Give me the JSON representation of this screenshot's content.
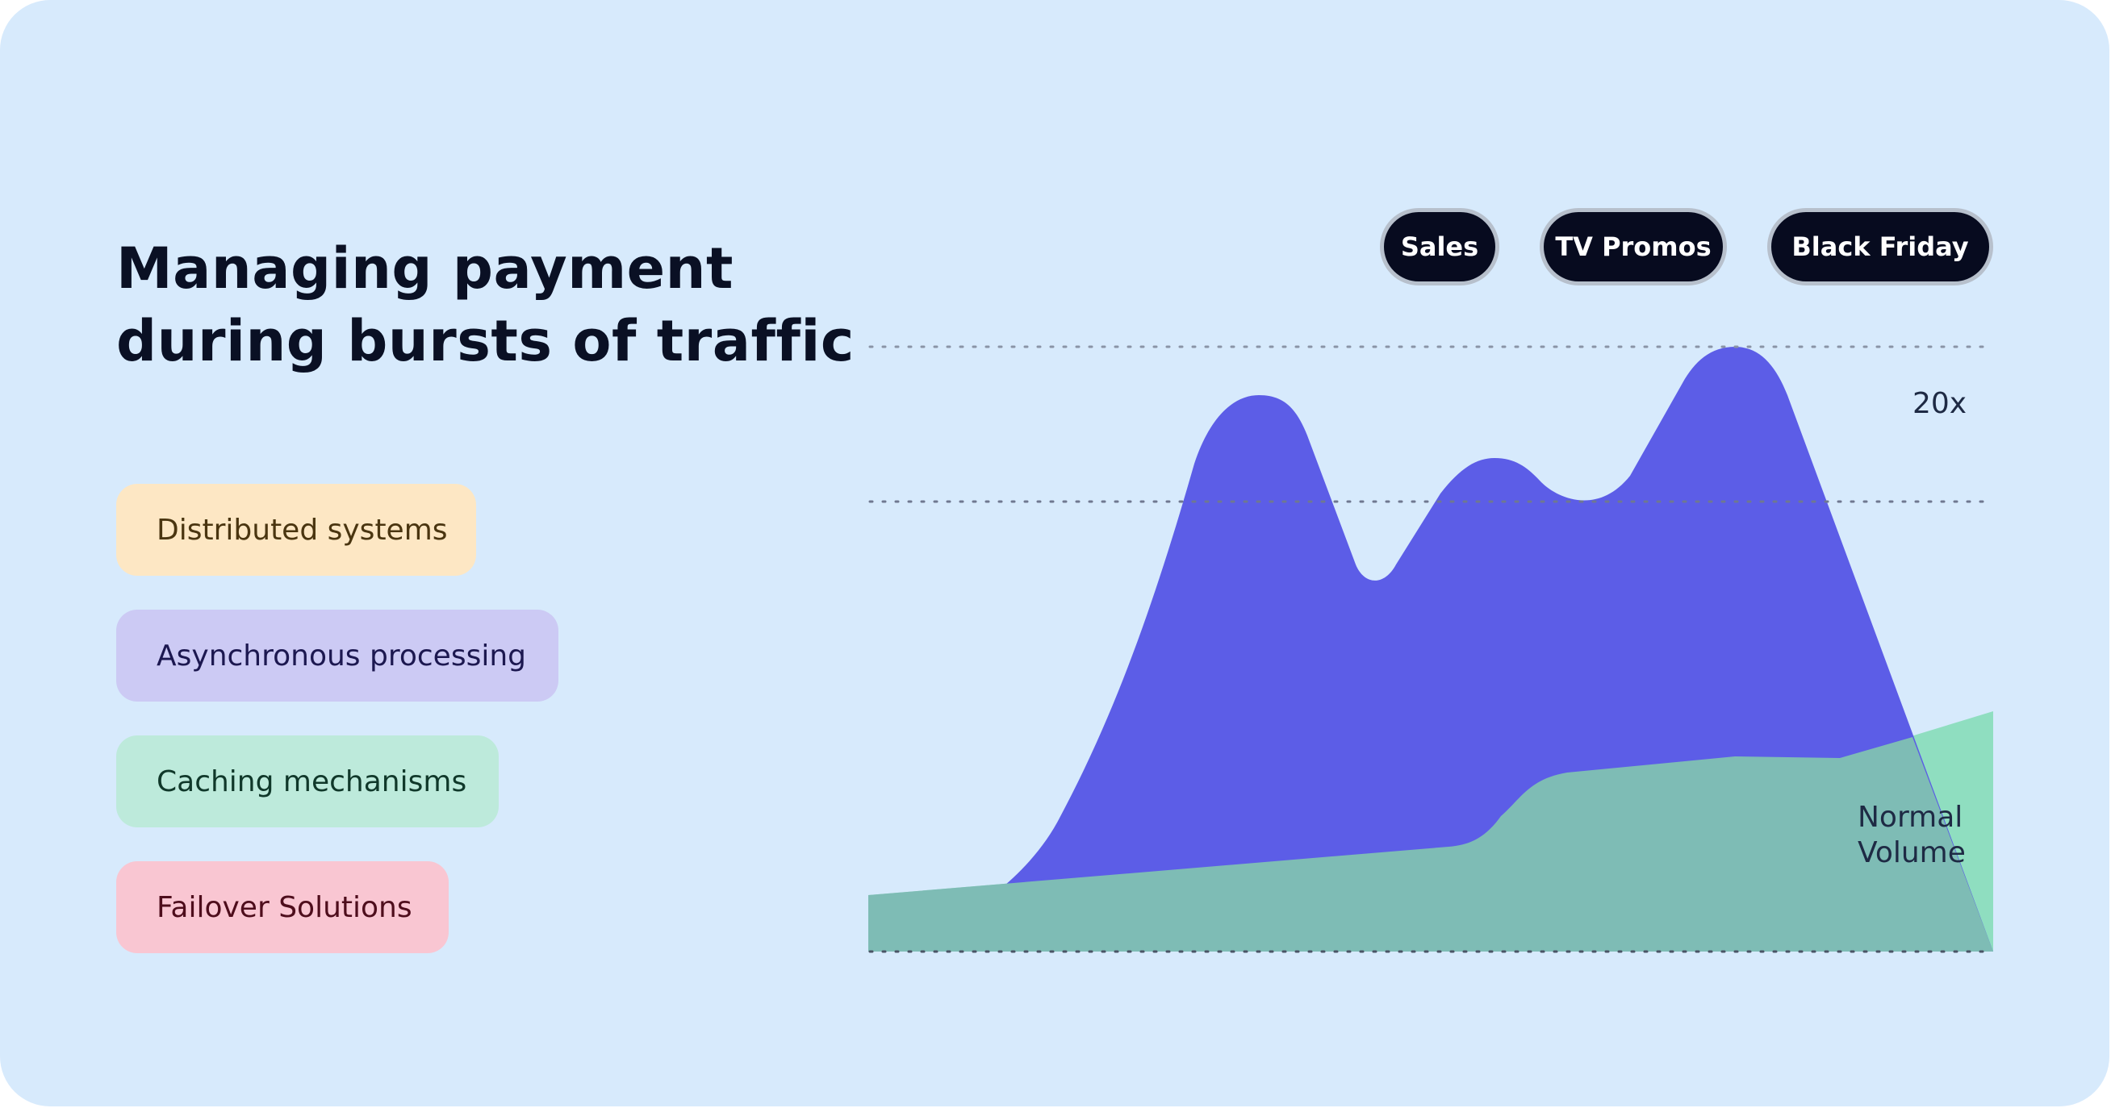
{
  "title": {
    "line1": "Managing payment",
    "line2": "during bursts of traffic"
  },
  "features": [
    {
      "label": "Distributed systems",
      "bg": "#fde7c4",
      "color": "#4a3510"
    },
    {
      "label": "Asynchronous processing",
      "bg": "#cccaf4",
      "color": "#1c1850"
    },
    {
      "label": "Caching mechanisms",
      "bg": "#bdeadb",
      "color": "#10382a"
    },
    {
      "label": "Failover Solutions",
      "bg": "#f9c6d2",
      "color": "#4e0d1c"
    }
  ],
  "events": [
    "Sales",
    "TV Promos",
    "Black Friday"
  ],
  "chart": {
    "peak_label": "20x",
    "normal_line1": "Normal",
    "normal_line2": "Volume",
    "burst_color": "#5858e6",
    "normal_color": "#7ddbb0"
  }
}
